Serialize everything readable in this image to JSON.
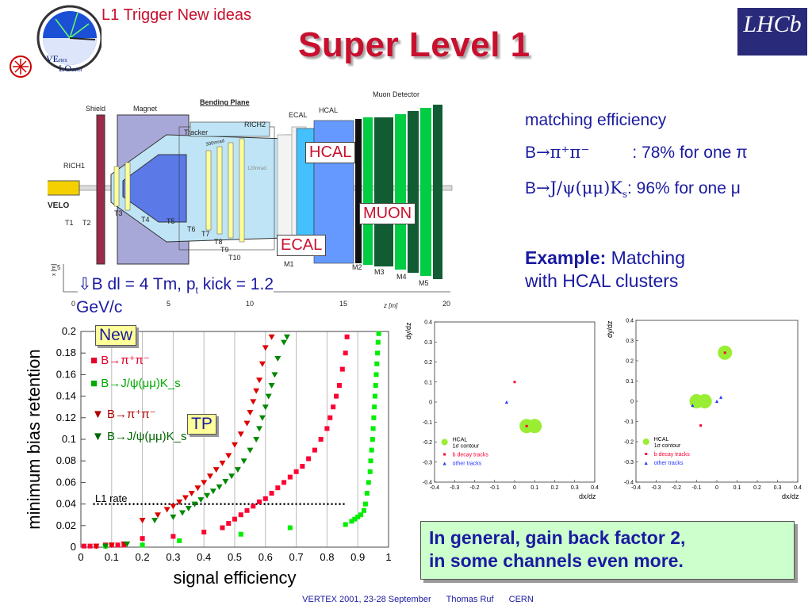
{
  "header": {
    "subtitle": "L1 Trigger New ideas",
    "title": "Super Level 1",
    "logo_left": "VErtex LOcator",
    "logo_left_vertex": "VE",
    "logo_left_vertex_small": "rtex",
    "logo_left_locator": "LO",
    "logo_left_locator_small": "cator",
    "logo_right": "LHCb"
  },
  "detector": {
    "labels": [
      "Shield",
      "Magnet",
      "Bending Plane",
      "RICH2",
      "ECAL",
      "HCAL",
      "Muon Detector",
      "Tracker",
      "RICH1",
      "VELO",
      "T1",
      "T2",
      "T3",
      "T4",
      "T5",
      "T6",
      "T7",
      "T8",
      "T9",
      "T10",
      "M1",
      "M2",
      "M3",
      "M4",
      "M5",
      "300mrad",
      "120mrad"
    ],
    "axis_y_label": "x [m]",
    "axis_x_label": "z [m]",
    "axis_y_ticks": [
      "5"
    ],
    "axis_x_ticks": [
      "0",
      "5",
      "10",
      "15",
      "20"
    ],
    "tags": {
      "hcal": "HCAL",
      "muon": "MUON",
      "ecal": "ECAL"
    },
    "bdl_arrow": "⇩",
    "bdl_line1": "B dl = 4 Tm,  p",
    "bdl_sub": "t",
    "bdl_line1_end": " kick = 1.2",
    "bdl_line2": "GeV/c"
  },
  "matching": {
    "title": "matching efficiency",
    "row1_prefix": "B",
    "row1_arrow": "→",
    "row1_decay": "π⁺π⁻",
    "row1_value": ": 78% for one π",
    "row2_prefix": "B",
    "row2_arrow": "→",
    "row2_decay": "J/ψ(μμ)K",
    "row2_sub": "s",
    "row2_value": ": 96% for one μ",
    "example_bold": "Example:",
    "example_rest": " Matching",
    "example_line2": "with HCAL clusters"
  },
  "chart_data": [
    {
      "type": "scatter",
      "title": "",
      "xlabel": "signal efficiency",
      "ylabel": "minimum bias retention",
      "xlim": [
        0,
        1
      ],
      "ylim": [
        0,
        0.2
      ],
      "x_ticks": [
        "0",
        "0.1",
        "0.2",
        "0.3",
        "0.4",
        "0.5",
        "0.6",
        "0.7",
        "0.8",
        "0.9",
        "1"
      ],
      "y_ticks": [
        "0",
        "0.02",
        "0.04",
        "0.06",
        "0.08",
        "0.1",
        "0.12",
        "0.14",
        "0.16",
        "0.18",
        "0.2"
      ],
      "grid": true,
      "annotations": {
        "new": "New",
        "tp": "TP",
        "l1_rate": "L1 rate",
        "l1_rate_value": 0.04
      },
      "series": [
        {
          "name": "B→π⁺π⁻",
          "group": "New",
          "marker": "square",
          "color": "#ff0033",
          "points": [
            [
              0.01,
              0.001
            ],
            [
              0.03,
              0.001
            ],
            [
              0.05,
              0.001
            ],
            [
              0.08,
              0.002
            ],
            [
              0.1,
              0.002
            ],
            [
              0.12,
              0.002
            ],
            [
              0.14,
              0.002
            ],
            [
              0.2,
              0.008
            ],
            [
              0.3,
              0.01
            ],
            [
              0.4,
              0.014
            ],
            [
              0.46,
              0.018
            ],
            [
              0.48,
              0.022
            ],
            [
              0.5,
              0.026
            ],
            [
              0.52,
              0.03
            ],
            [
              0.54,
              0.034
            ],
            [
              0.56,
              0.038
            ],
            [
              0.58,
              0.042
            ],
            [
              0.6,
              0.045
            ],
            [
              0.62,
              0.05
            ],
            [
              0.64,
              0.055
            ],
            [
              0.66,
              0.06
            ],
            [
              0.68,
              0.065
            ],
            [
              0.7,
              0.07
            ],
            [
              0.72,
              0.075
            ],
            [
              0.74,
              0.082
            ],
            [
              0.76,
              0.09
            ],
            [
              0.78,
              0.1
            ],
            [
              0.8,
              0.11
            ],
            [
              0.81,
              0.12
            ],
            [
              0.82,
              0.13
            ],
            [
              0.83,
              0.14
            ],
            [
              0.84,
              0.15
            ],
            [
              0.85,
              0.165
            ],
            [
              0.86,
              0.18
            ],
            [
              0.865,
              0.195
            ]
          ]
        },
        {
          "name": "B→J/ψ(μμ)K_s",
          "group": "New",
          "marker": "square",
          "color": "#00ee00",
          "points": [
            [
              0.08,
              0.001
            ],
            [
              0.2,
              0.002
            ],
            [
              0.32,
              0.006
            ],
            [
              0.52,
              0.012
            ],
            [
              0.68,
              0.018
            ],
            [
              0.86,
              0.021
            ],
            [
              0.88,
              0.024
            ],
            [
              0.89,
              0.026
            ],
            [
              0.9,
              0.028
            ],
            [
              0.91,
              0.03
            ],
            [
              0.92,
              0.034
            ],
            [
              0.925,
              0.04
            ],
            [
              0.93,
              0.05
            ],
            [
              0.935,
              0.06
            ],
            [
              0.94,
              0.07
            ],
            [
              0.942,
              0.08
            ],
            [
              0.945,
              0.09
            ],
            [
              0.948,
              0.1
            ],
            [
              0.95,
              0.11
            ],
            [
              0.952,
              0.12
            ],
            [
              0.954,
              0.13
            ],
            [
              0.956,
              0.14
            ],
            [
              0.958,
              0.15
            ],
            [
              0.96,
              0.16
            ],
            [
              0.962,
              0.17
            ],
            [
              0.964,
              0.18
            ],
            [
              0.966,
              0.19
            ],
            [
              0.968,
              0.198
            ]
          ]
        },
        {
          "name": "B→π⁺π⁻",
          "group": "TP",
          "marker": "triangle-down",
          "color": "#dd0000",
          "points": [
            [
              0.05,
              0.001
            ],
            [
              0.1,
              0.002
            ],
            [
              0.14,
              0.003
            ],
            [
              0.2,
              0.025
            ],
            [
              0.25,
              0.03
            ],
            [
              0.28,
              0.035
            ],
            [
              0.3,
              0.038
            ],
            [
              0.32,
              0.042
            ],
            [
              0.34,
              0.046
            ],
            [
              0.36,
              0.05
            ],
            [
              0.38,
              0.055
            ],
            [
              0.4,
              0.06
            ],
            [
              0.42,
              0.066
            ],
            [
              0.44,
              0.072
            ],
            [
              0.46,
              0.078
            ],
            [
              0.48,
              0.085
            ],
            [
              0.5,
              0.095
            ],
            [
              0.52,
              0.105
            ],
            [
              0.54,
              0.115
            ],
            [
              0.55,
              0.125
            ],
            [
              0.56,
              0.135
            ],
            [
              0.57,
              0.145
            ],
            [
              0.58,
              0.155
            ],
            [
              0.59,
              0.17
            ],
            [
              0.6,
              0.185
            ],
            [
              0.62,
              0.195
            ]
          ]
        },
        {
          "name": "B→J/ψ(μμ)K_s",
          "group": "TP",
          "marker": "triangle-down",
          "color": "#008800",
          "points": [
            [
              0.08,
              0.001
            ],
            [
              0.15,
              0.003
            ],
            [
              0.24,
              0.025
            ],
            [
              0.3,
              0.028
            ],
            [
              0.33,
              0.032
            ],
            [
              0.35,
              0.036
            ],
            [
              0.37,
              0.04
            ],
            [
              0.39,
              0.044
            ],
            [
              0.41,
              0.048
            ],
            [
              0.43,
              0.052
            ],
            [
              0.45,
              0.056
            ],
            [
              0.47,
              0.061
            ],
            [
              0.49,
              0.066
            ],
            [
              0.51,
              0.072
            ],
            [
              0.53,
              0.08
            ],
            [
              0.55,
              0.09
            ],
            [
              0.57,
              0.1
            ],
            [
              0.58,
              0.11
            ],
            [
              0.59,
              0.12
            ],
            [
              0.6,
              0.13
            ],
            [
              0.61,
              0.14
            ],
            [
              0.62,
              0.15
            ],
            [
              0.63,
              0.16
            ],
            [
              0.64,
              0.175
            ],
            [
              0.66,
              0.19
            ],
            [
              0.67,
              0.195
            ]
          ]
        }
      ]
    },
    {
      "type": "scatter",
      "xlabel": "dx/dz",
      "ylabel": "dy/dz",
      "xlim": [
        -0.4,
        0.4
      ],
      "ylim": [
        -0.4,
        0.4
      ],
      "x_ticks": [
        "-0.4",
        "-0.3",
        "-0.2",
        "-0.1",
        "0",
        "0.1",
        "0.2",
        "0.3",
        "0.4"
      ],
      "y_ticks": [
        "-0.4",
        "-0.3",
        "-0.2",
        "-0.1",
        "0",
        "0.1",
        "0.2",
        "0.3",
        "0.4"
      ],
      "legend_placement": "bottom-left",
      "legend": [
        "HCAL",
        "1σ contour",
        "b decay tracks",
        "other tracks"
      ],
      "hcal_clusters": [
        [
          0.06,
          -0.12
        ],
        [
          0.1,
          -0.12
        ]
      ],
      "b_decay_tracks": [
        [
          0.0,
          0.1
        ],
        [
          0.06,
          -0.12
        ]
      ],
      "other_tracks": [
        [
          -0.04,
          0.0
        ]
      ]
    },
    {
      "type": "scatter",
      "xlabel": "dx/dz",
      "ylabel": "dy/dz",
      "xlim": [
        -0.4,
        0.4
      ],
      "ylim": [
        -0.4,
        0.4
      ],
      "x_ticks": [
        "-0.4",
        "-0.3",
        "-0.2",
        "-0.1",
        "0",
        "0.1",
        "0.2",
        "0.3",
        "0.4"
      ],
      "y_ticks": [
        "-0.4",
        "-0.3",
        "-0.2",
        "-0.1",
        "0",
        "0.1",
        "0.2",
        "0.3",
        "0.4"
      ],
      "legend_placement": "bottom-left",
      "legend": [
        "HCAL",
        "1σ contour",
        "b decay tracks",
        "other tracks"
      ],
      "hcal_clusters": [
        [
          0.04,
          0.24
        ],
        [
          -0.1,
          0.0
        ],
        [
          -0.06,
          0.0
        ]
      ],
      "b_decay_tracks": [
        [
          0.04,
          0.24
        ],
        [
          -0.08,
          -0.12
        ]
      ],
      "other_tracks": [
        [
          -0.12,
          -0.02
        ],
        [
          0.0,
          0.0
        ],
        [
          0.02,
          0.02
        ]
      ]
    }
  ],
  "conclusion": {
    "line1": "In general, gain back factor 2,",
    "line2": "in some channels even more."
  },
  "footer": {
    "event": "VERTEX 2001, 23-28 September",
    "author": "Thomas Ruf",
    "org": "CERN"
  }
}
